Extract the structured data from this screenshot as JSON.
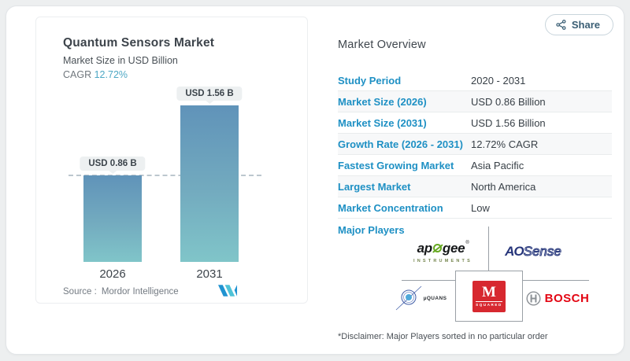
{
  "share": {
    "label": "Share"
  },
  "chart_panel": {
    "title": "Quantum Sensors Market",
    "subtitle": "Market Size in USD Billion",
    "cagr_label": "CAGR",
    "cagr_value": "12.72%",
    "source_label": "Source :",
    "source_value": "Mordor Intelligence"
  },
  "chart_data": {
    "type": "bar",
    "title": "Quantum Sensors Market",
    "subtitle": "Market Size in USD Billion",
    "unit": "USD Billion",
    "categories": [
      "2026",
      "2031"
    ],
    "values": [
      0.86,
      1.56
    ],
    "bar_labels": [
      "USD 0.86 B",
      "USD 1.56 B"
    ],
    "cagr_percent": 12.72,
    "reference_line": 0.86,
    "bar_gradient_top": "#6093b9",
    "bar_gradient_bottom": "#80c5c9",
    "grid": false,
    "legend": false
  },
  "overview": {
    "heading": "Market Overview",
    "rows": [
      {
        "label": "Study Period",
        "value": "2020 - 2031"
      },
      {
        "label": "Market Size (2026)",
        "value": "USD 0.86 Billion"
      },
      {
        "label": "Market Size (2031)",
        "value": "USD 1.56 Billion"
      },
      {
        "label": "Growth Rate (2026 - 2031)",
        "value": "12.72% CAGR"
      },
      {
        "label": "Fastest Growing Market",
        "value": "Asia Pacific"
      },
      {
        "label": "Largest Market",
        "value": "North America"
      },
      {
        "label": "Market Concentration",
        "value": "Low"
      }
    ],
    "major_players_label": "Major Players",
    "players": [
      "Apogee Instruments",
      "AOSense",
      "Muquans",
      "M Squared Lasers",
      "Bosch"
    ],
    "disclaimer": "*Disclaimer: Major Players sorted in no particular order"
  },
  "logos": {
    "apogee_pre": "ap",
    "apogee_post": "gee",
    "apogee_sub": "INSTRUMENTS",
    "aosense_bold": "AO",
    "aosense_light": "Sense",
    "muquans_text": "µQUANS",
    "msquared_letter": "M",
    "msquared_sub": "SQUARED",
    "bosch_text": "BOSCH"
  },
  "colors": {
    "accent_blue": "#1e90c4",
    "cagr_teal": "#4fa8c5",
    "bosch_red": "#e30613",
    "msquared_red": "#d7282f",
    "apogee_green": "#67a922",
    "aosense_navy": "#26357a"
  }
}
